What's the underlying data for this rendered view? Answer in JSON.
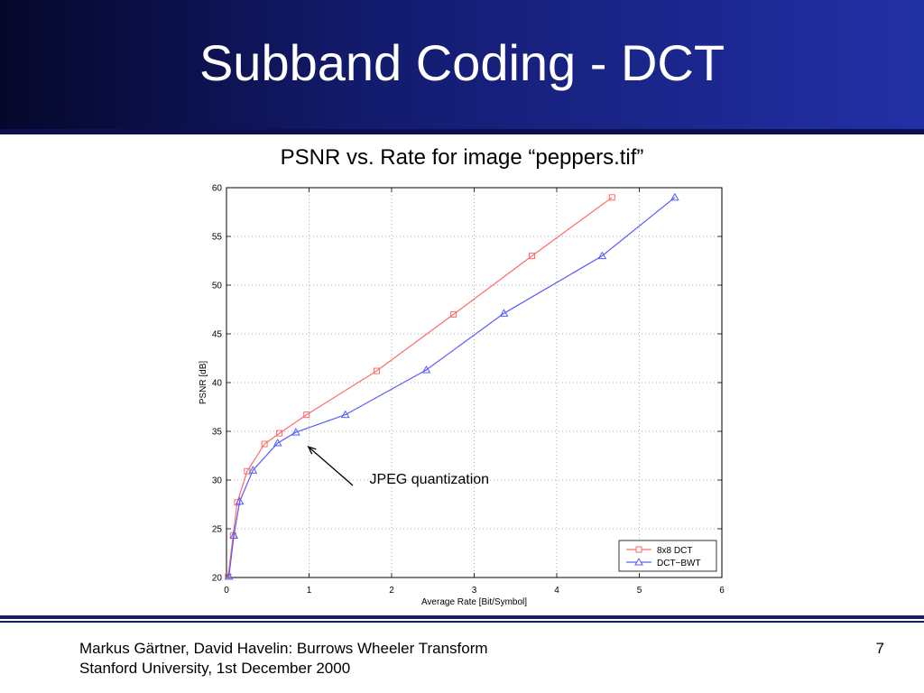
{
  "slide": {
    "title": "Subband Coding - DCT",
    "footer_line1": "Markus Gärtner, David Havelin: Burrows Wheeler Transform",
    "footer_line2": "Stanford University, 1st December 2000",
    "page_number": "7"
  },
  "colors": {
    "header_dark": "#05072a",
    "header_light": "#2230a6",
    "series_dct": "#ff6a6a",
    "series_bwt": "#5a5aff"
  },
  "chart_data": {
    "type": "line",
    "title": "PSNR vs. Rate for image “peppers.tif”",
    "xlabel": "Average Rate [Bit/Symbol]",
    "ylabel": "PSNR [dB]",
    "xlim": [
      0,
      6
    ],
    "ylim": [
      20,
      60
    ],
    "xticks": [
      "0",
      "1",
      "2",
      "3",
      "4",
      "5",
      "6"
    ],
    "yticks": [
      "20",
      "25",
      "30",
      "35",
      "40",
      "45",
      "50",
      "55",
      "60"
    ],
    "grid": true,
    "legend_position": "bottom-right",
    "series": [
      {
        "name": "8x8 DCT",
        "color": "#ff6a6a",
        "marker": "square",
        "x": [
          0.02,
          0.08,
          0.13,
          0.25,
          0.46,
          0.64,
          0.97,
          1.82,
          2.75,
          3.7,
          4.67
        ],
        "y": [
          20.1,
          24.3,
          27.7,
          30.9,
          33.7,
          34.8,
          36.7,
          41.2,
          47.0,
          53.0,
          59.0
        ]
      },
      {
        "name": "DCT−BWT",
        "color": "#5a5aff",
        "marker": "triangle",
        "x": [
          0.03,
          0.09,
          0.16,
          0.32,
          0.62,
          0.84,
          1.44,
          2.42,
          3.36,
          4.55,
          5.43
        ],
        "y": [
          20.1,
          24.3,
          27.8,
          31.0,
          33.8,
          34.9,
          36.7,
          41.3,
          47.1,
          53.0,
          59.0
        ]
      }
    ],
    "annotations": [
      {
        "text": "JPEG quantization",
        "x_text": 1.7,
        "y_text": 29.8,
        "target_x": 0.97,
        "target_y": 33.6
      }
    ]
  }
}
